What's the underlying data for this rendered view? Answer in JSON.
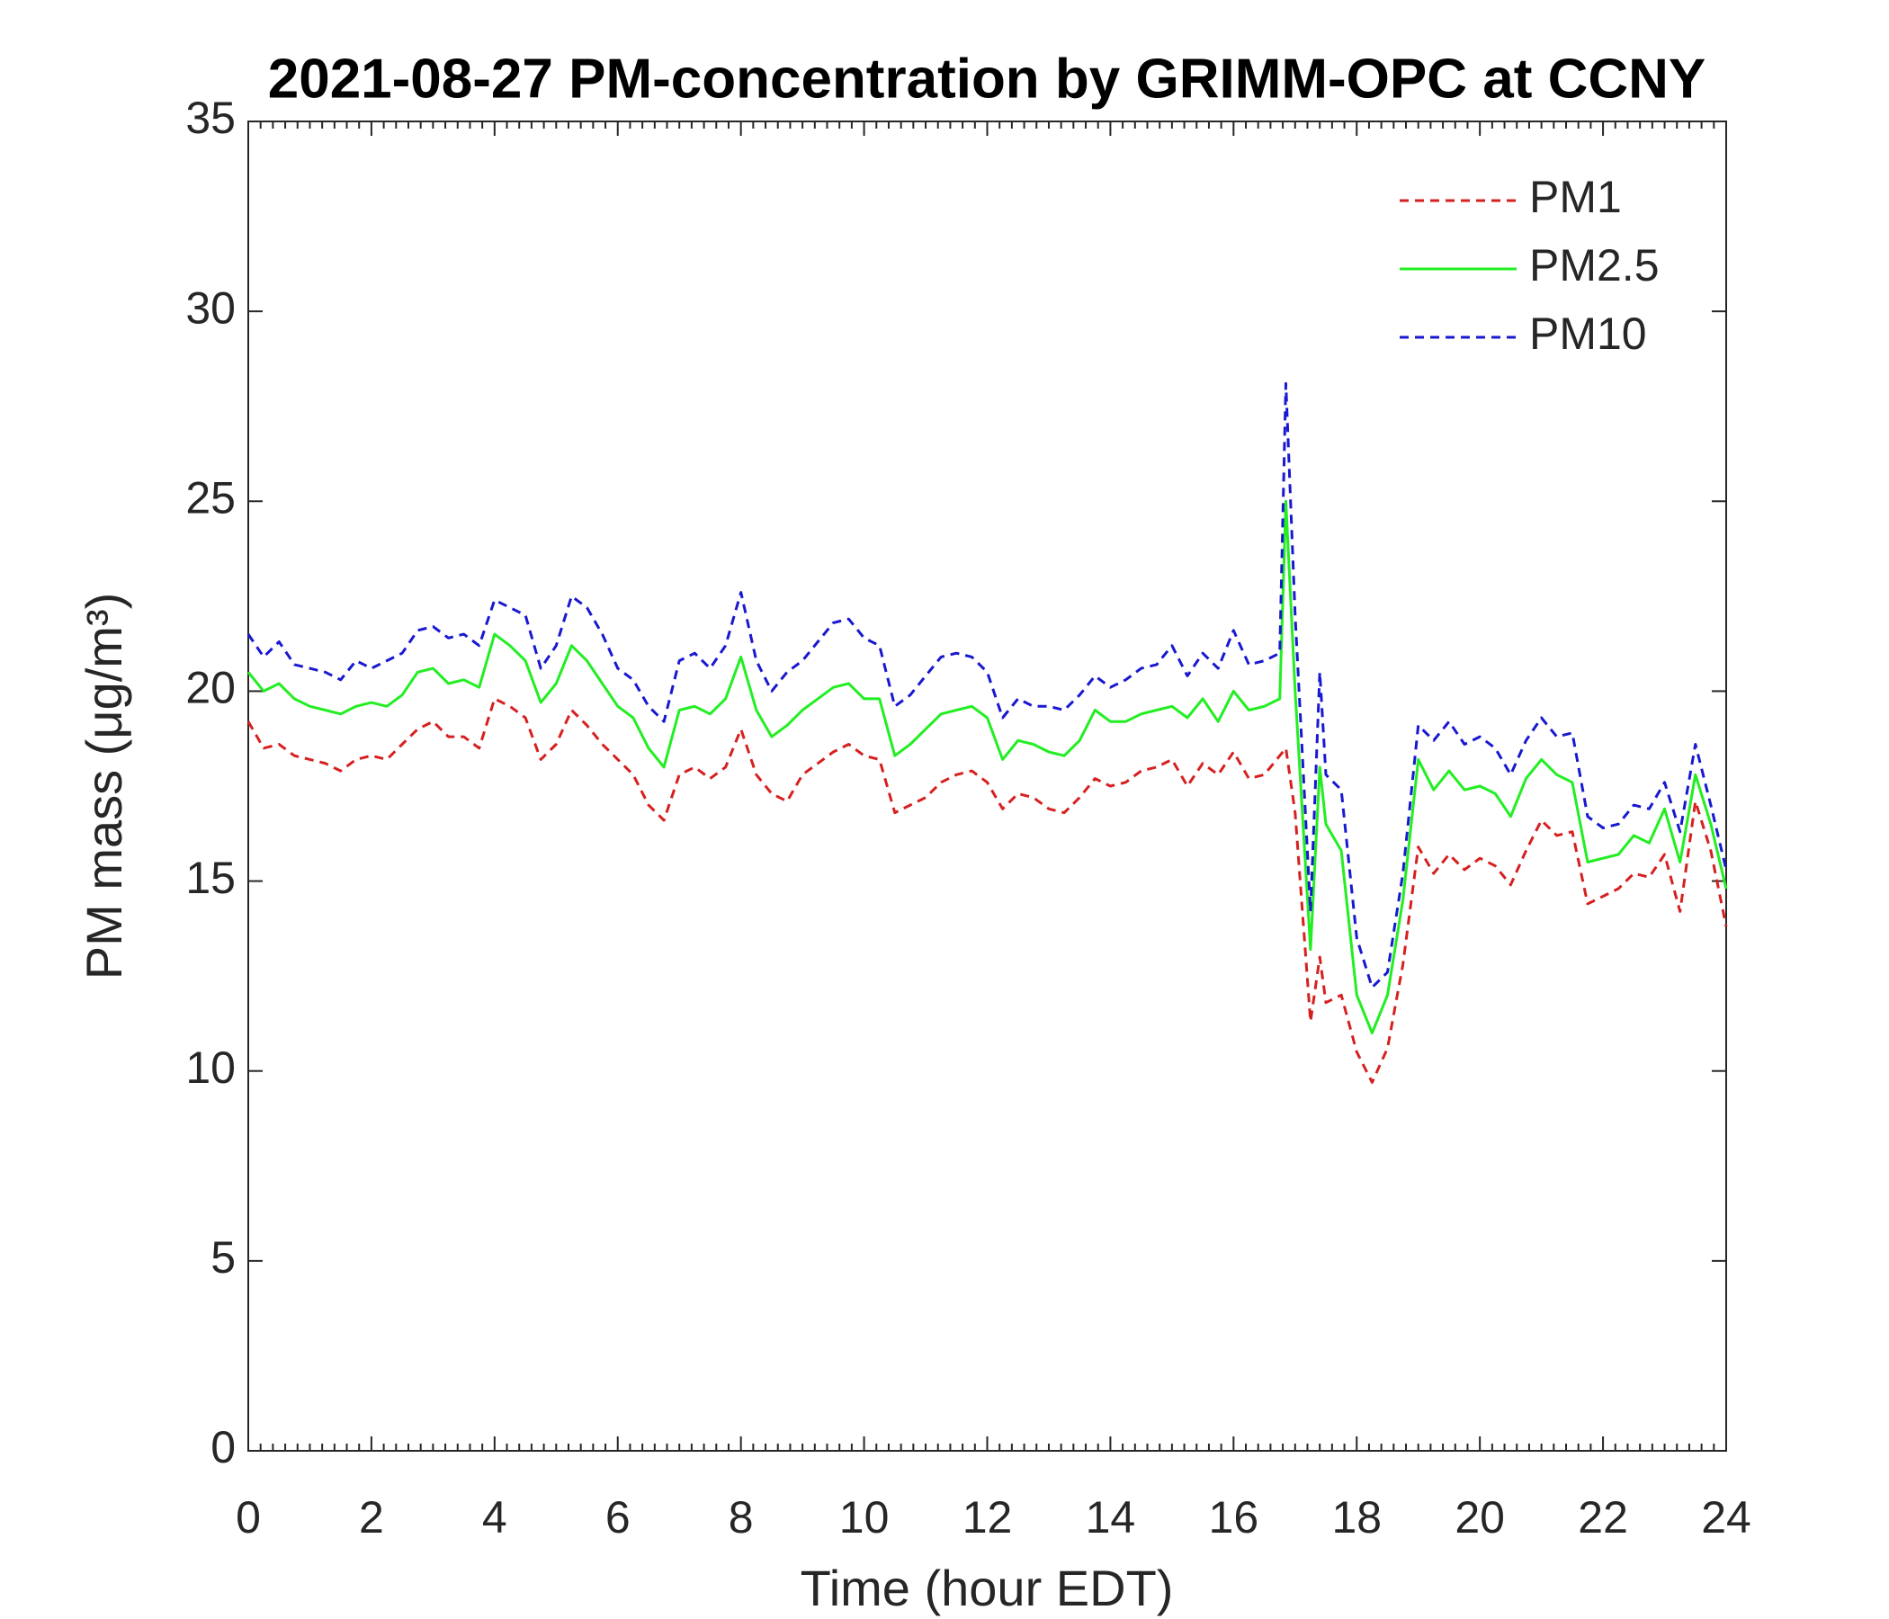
{
  "chart_data": {
    "type": "line",
    "title": "2021-08-27 PM-concentration by GRIMM-OPC at CCNY",
    "x_label": "Time (hour EDT)",
    "y_label": "PM mass (μg/m³)",
    "xlim": [
      0,
      24
    ],
    "xticks": [
      0,
      2,
      4,
      6,
      8,
      10,
      12,
      14,
      16,
      18,
      20,
      22,
      24
    ],
    "ylim": [
      0,
      35
    ],
    "yticks": [
      0,
      5,
      10,
      15,
      20,
      25,
      30,
      35
    ],
    "legend": "upper right",
    "x": [
      0,
      0.25,
      0.5,
      0.75,
      1,
      1.25,
      1.5,
      1.75,
      2,
      2.25,
      2.5,
      2.75,
      3,
      3.25,
      3.5,
      3.75,
      4,
      4.25,
      4.5,
      4.75,
      5,
      5.25,
      5.5,
      5.75,
      6,
      6.25,
      6.5,
      6.75,
      7,
      7.25,
      7.5,
      7.75,
      8,
      8.25,
      8.5,
      8.75,
      9,
      9.25,
      9.5,
      9.75,
      10,
      10.25,
      10.5,
      10.75,
      11,
      11.25,
      11.5,
      11.75,
      12,
      12.25,
      12.5,
      12.75,
      13,
      13.25,
      13.5,
      13.75,
      14,
      14.25,
      14.5,
      14.75,
      15,
      15.25,
      15.5,
      15.75,
      16,
      16.25,
      16.5,
      16.75,
      16.85,
      17,
      17.25,
      17.4,
      17.5,
      17.75,
      18,
      18.25,
      18.5,
      18.75,
      19,
      19.25,
      19.5,
      19.75,
      20,
      20.25,
      20.5,
      20.75,
      21,
      21.25,
      21.5,
      21.75,
      22,
      22.25,
      22.5,
      22.75,
      23,
      23.25,
      23.5,
      23.75,
      24
    ],
    "series": [
      {
        "name": "PM1",
        "color": "#d62020",
        "style": "dashed",
        "values": [
          19.2,
          18.5,
          18.6,
          18.3,
          18.2,
          18.1,
          17.9,
          18.2,
          18.3,
          18.2,
          18.6,
          19.0,
          19.2,
          18.8,
          18.8,
          18.5,
          19.8,
          19.6,
          19.3,
          18.2,
          18.6,
          19.5,
          19.1,
          18.6,
          18.2,
          17.8,
          17.0,
          16.6,
          17.8,
          18.0,
          17.7,
          18.0,
          19.0,
          17.8,
          17.3,
          17.1,
          17.8,
          18.1,
          18.4,
          18.6,
          18.3,
          18.2,
          16.8,
          17.0,
          17.2,
          17.6,
          17.8,
          17.9,
          17.6,
          16.9,
          17.3,
          17.2,
          16.9,
          16.8,
          17.2,
          17.7,
          17.5,
          17.6,
          17.9,
          18.0,
          18.2,
          17.5,
          18.1,
          17.8,
          18.4,
          17.7,
          17.8,
          18.3,
          18.5,
          16.8,
          11.3,
          13.0,
          11.8,
          12.0,
          10.5,
          9.7,
          10.6,
          12.8,
          15.9,
          15.2,
          15.7,
          15.3,
          15.6,
          15.4,
          14.9,
          15.8,
          16.6,
          16.2,
          16.3,
          14.4,
          14.6,
          14.8,
          15.2,
          15.1,
          15.7,
          14.2,
          17.1,
          15.8,
          13.8
        ]
      },
      {
        "name": "PM2.5",
        "color": "#22ee22",
        "style": "solid",
        "values": [
          20.5,
          20.0,
          20.2,
          19.8,
          19.6,
          19.5,
          19.4,
          19.6,
          19.7,
          19.6,
          19.9,
          20.5,
          20.6,
          20.2,
          20.3,
          20.1,
          21.5,
          21.2,
          20.8,
          19.7,
          20.2,
          21.2,
          20.8,
          20.2,
          19.6,
          19.3,
          18.5,
          18.0,
          19.5,
          19.6,
          19.4,
          19.8,
          20.9,
          19.5,
          18.8,
          19.1,
          19.5,
          19.8,
          20.1,
          20.2,
          19.8,
          19.8,
          18.3,
          18.6,
          19.0,
          19.4,
          19.5,
          19.6,
          19.3,
          18.2,
          18.7,
          18.6,
          18.4,
          18.3,
          18.7,
          19.5,
          19.2,
          19.2,
          19.4,
          19.5,
          19.6,
          19.3,
          19.8,
          19.2,
          20.0,
          19.5,
          19.6,
          19.8,
          25.0,
          20.0,
          13.2,
          18.0,
          16.5,
          15.8,
          12.0,
          11.0,
          12.0,
          14.5,
          18.2,
          17.4,
          17.9,
          17.4,
          17.5,
          17.3,
          16.7,
          17.7,
          18.2,
          17.8,
          17.6,
          15.5,
          15.6,
          15.7,
          16.2,
          16.0,
          16.9,
          15.5,
          17.8,
          16.5,
          14.8
        ]
      },
      {
        "name": "PM10",
        "color": "#1818d0",
        "style": "dashed",
        "values": [
          21.5,
          20.9,
          21.3,
          20.7,
          20.6,
          20.5,
          20.3,
          20.8,
          20.6,
          20.8,
          21.0,
          21.6,
          21.7,
          21.4,
          21.5,
          21.2,
          22.4,
          22.2,
          22.0,
          20.6,
          21.2,
          22.5,
          22.2,
          21.5,
          20.6,
          20.3,
          19.6,
          19.2,
          20.8,
          21.0,
          20.6,
          21.2,
          22.6,
          20.8,
          20.0,
          20.5,
          20.8,
          21.3,
          21.8,
          21.9,
          21.4,
          21.2,
          19.6,
          19.9,
          20.4,
          20.9,
          21.0,
          20.9,
          20.5,
          19.3,
          19.8,
          19.6,
          19.6,
          19.5,
          19.9,
          20.4,
          20.1,
          20.3,
          20.6,
          20.7,
          21.2,
          20.4,
          21.0,
          20.6,
          21.6,
          20.7,
          20.8,
          21.0,
          28.1,
          22.0,
          14.2,
          20.5,
          17.8,
          17.4,
          13.5,
          12.2,
          12.6,
          15.2,
          19.1,
          18.7,
          19.2,
          18.6,
          18.8,
          18.5,
          17.8,
          18.7,
          19.3,
          18.8,
          18.9,
          16.7,
          16.4,
          16.5,
          17.0,
          16.9,
          17.6,
          16.3,
          18.6,
          17.0,
          15.3
        ]
      }
    ]
  }
}
